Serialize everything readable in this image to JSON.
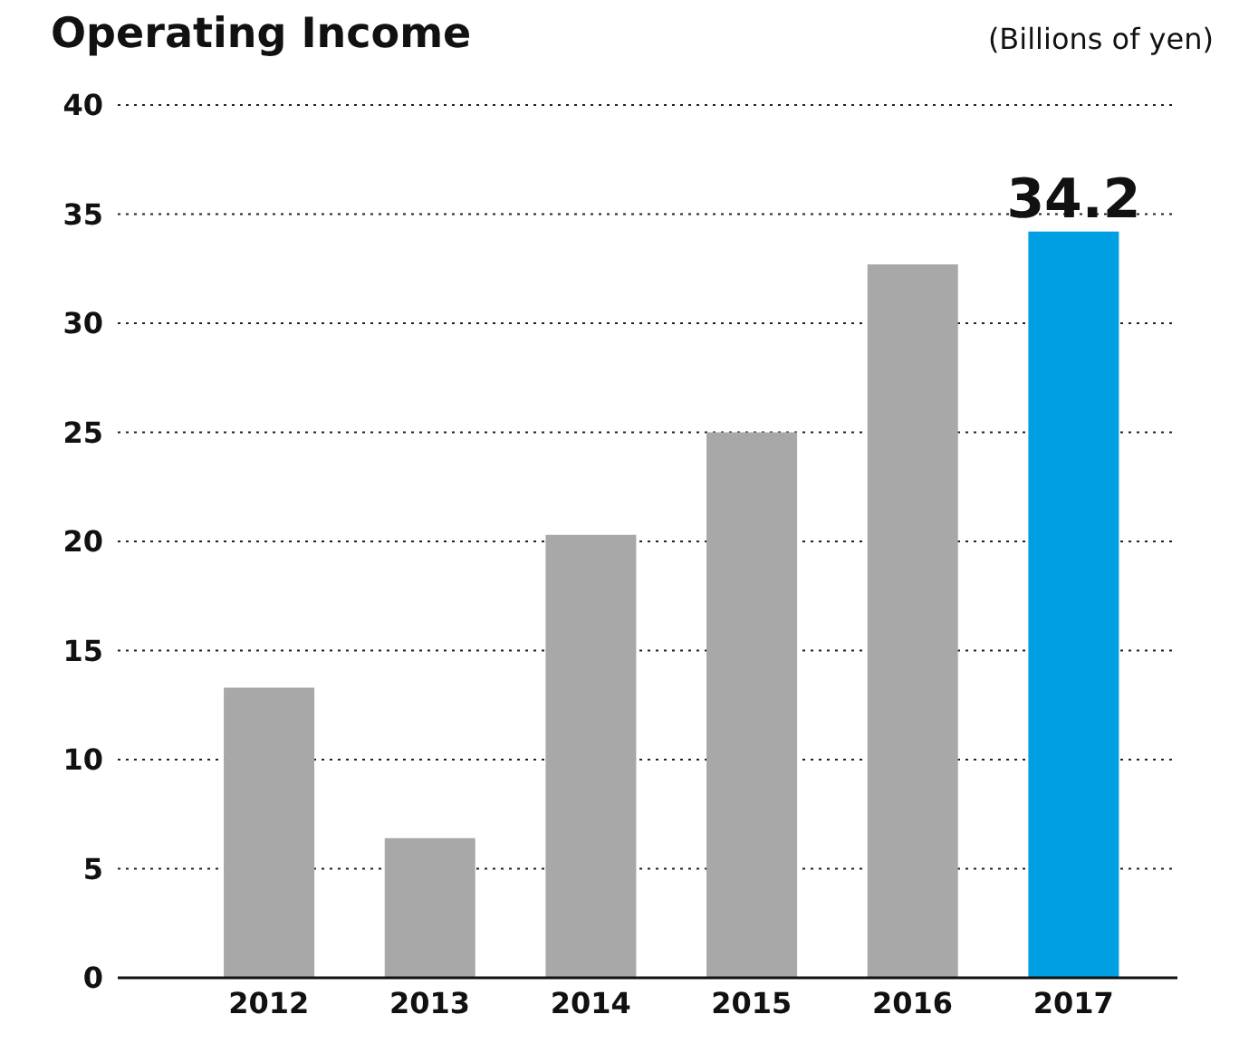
{
  "chart_data": {
    "type": "bar",
    "title": "Operating Income",
    "ylabel": "(Billions of yen)",
    "categories": [
      "2012",
      "2013",
      "2014",
      "2015",
      "2016",
      "2017"
    ],
    "values": [
      13.3,
      6.4,
      20.3,
      25.0,
      32.7,
      34.2
    ],
    "colors": [
      "#a7a8a7",
      "#a7a8a7",
      "#a7a8a7",
      "#a7a8a7",
      "#a7a8a7",
      "#009fe3"
    ],
    "value_labels": [
      null,
      null,
      null,
      null,
      null,
      "34.2"
    ],
    "ylim": [
      0,
      40
    ],
    "yticks": [
      0,
      5,
      10,
      15,
      20,
      25,
      30,
      35,
      40
    ],
    "grid": "y",
    "legend": false
  }
}
